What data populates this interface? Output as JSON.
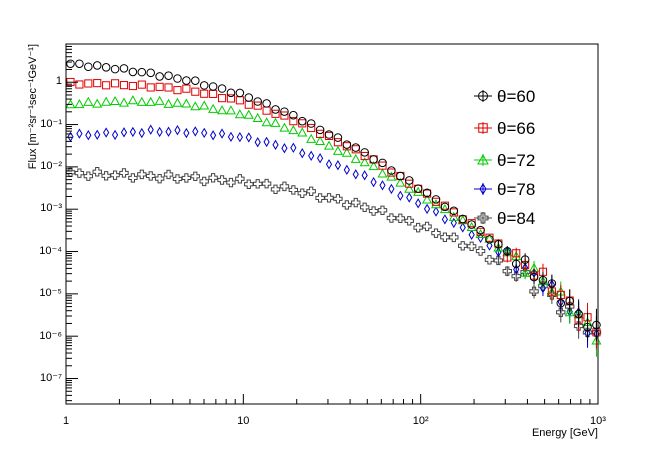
{
  "chart_data": {
    "type": "scatter",
    "title": "",
    "xlabel": "Energy [GeV]",
    "ylabel": "Flux [m⁻²sr⁻¹sec⁻¹GeV⁻¹]",
    "xscale": "log",
    "yscale": "log",
    "xlim": [
      1,
      1000
    ],
    "ylim": [
      2.5e-08,
      8
    ],
    "x_tick_labels": [
      "1",
      "10",
      "10²",
      "10³"
    ],
    "y_tick_labels": [
      "1",
      "10⁻¹",
      "10⁻²",
      "10⁻³",
      "10⁻⁴",
      "10⁻⁵",
      "10⁻⁶",
      "10⁻⁷"
    ],
    "legend_position": "top-right",
    "n_points_per_series": 60,
    "x_range_points": [
      1.06,
      980
    ],
    "series": [
      {
        "name": "θ=60",
        "marker": "circle",
        "color": "#000000",
        "x": [
          1,
          1.8,
          3,
          5,
          10,
          20,
          50,
          100,
          200,
          500,
          1000
        ],
        "y": [
          2.8,
          2.2,
          1.6,
          1.1,
          0.5,
          0.15,
          0.02,
          0.003,
          0.0004,
          2e-05,
          1.2e-06
        ]
      },
      {
        "name": "θ=66",
        "marker": "square",
        "color": "#e00000",
        "x": [
          1,
          1.8,
          3,
          5,
          10,
          20,
          50,
          100,
          200,
          500,
          1000
        ],
        "y": [
          0.95,
          0.9,
          0.8,
          0.65,
          0.35,
          0.12,
          0.018,
          0.0028,
          0.0004,
          2.2e-05,
          1.2e-06
        ]
      },
      {
        "name": "θ=72",
        "marker": "triangle",
        "color": "#00cc00",
        "x": [
          1,
          2,
          3,
          5,
          10,
          20,
          50,
          100,
          200,
          500,
          1000
        ],
        "y": [
          0.3,
          0.35,
          0.35,
          0.3,
          0.18,
          0.07,
          0.012,
          0.0022,
          0.00035,
          2e-05,
          1e-06
        ]
      },
      {
        "name": "θ=78",
        "marker": "diamond",
        "color": "#0000cc",
        "x": [
          1,
          2,
          3,
          5,
          10,
          20,
          50,
          100,
          200,
          500,
          1000
        ],
        "y": [
          0.055,
          0.062,
          0.07,
          0.068,
          0.05,
          0.025,
          0.0055,
          0.0013,
          0.00025,
          1.8e-05,
          9e-07
        ]
      },
      {
        "name": "θ=84",
        "marker": "cross",
        "color": "#444444",
        "x": [
          1,
          2,
          3,
          5,
          10,
          20,
          50,
          100,
          200,
          500,
          1000
        ],
        "y": [
          0.007,
          0.0065,
          0.006,
          0.0055,
          0.0045,
          0.0028,
          0.0011,
          0.0004,
          0.00012,
          1.2e-05,
          8e-07
        ]
      }
    ]
  }
}
